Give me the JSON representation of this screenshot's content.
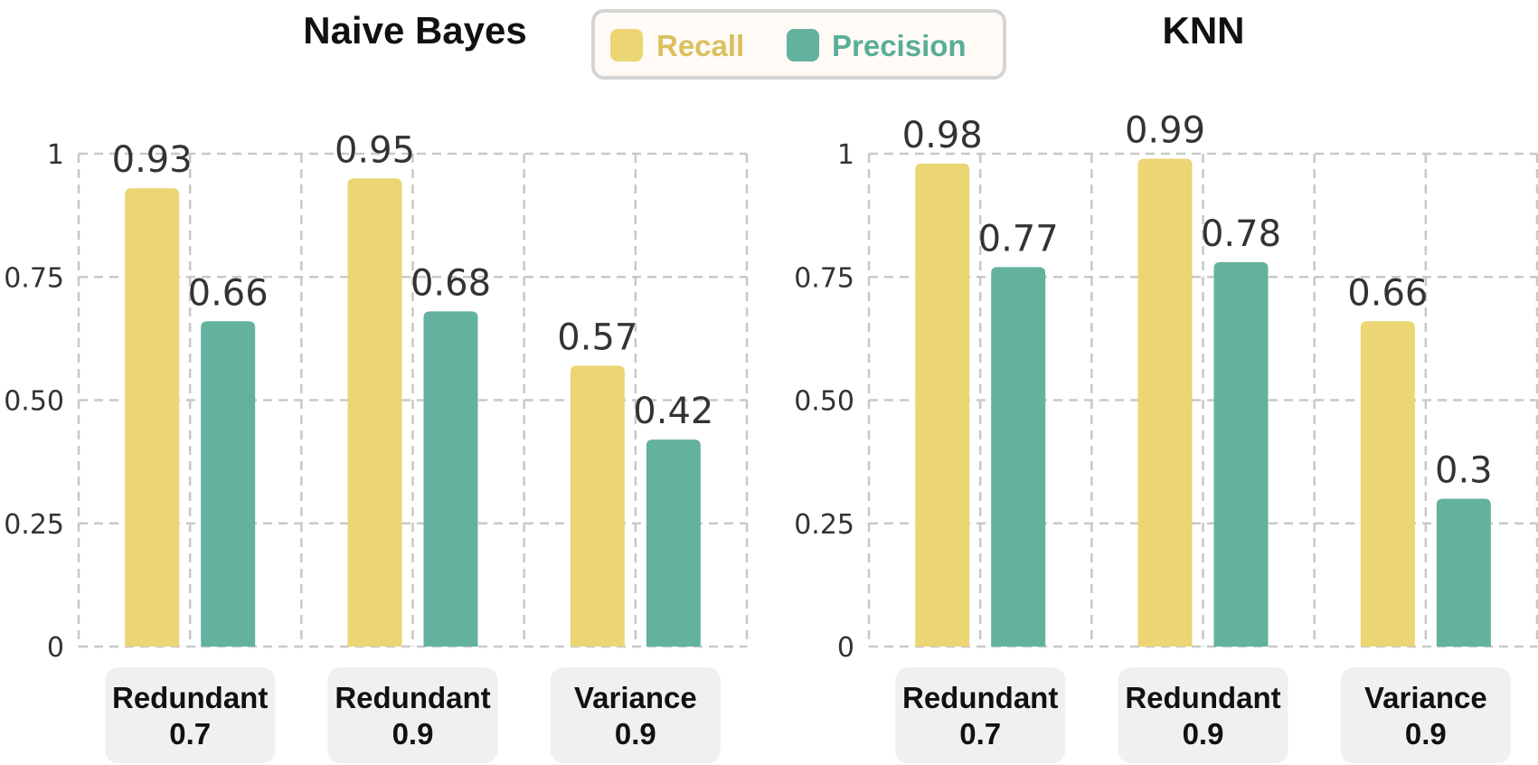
{
  "chart_data": [
    {
      "type": "bar",
      "title": "Naive Bayes",
      "categories": [
        [
          "Redundant",
          "0.7"
        ],
        [
          "Redundant",
          "0.9"
        ],
        [
          "Variance",
          "0.9"
        ]
      ],
      "series": [
        {
          "name": "Recall",
          "values": [
            0.93,
            0.95,
            0.57
          ],
          "color": "#ecd573"
        },
        {
          "name": "Precision",
          "values": [
            0.66,
            0.68,
            0.42
          ],
          "color": "#62b29e"
        }
      ],
      "yticks": [
        "0",
        "0.25",
        "0.50",
        "0.75",
        "1"
      ],
      "ylim": [
        0,
        1
      ],
      "grid": true
    },
    {
      "type": "bar",
      "title": "KNN",
      "categories": [
        [
          "Redundant",
          "0.7"
        ],
        [
          "Redundant",
          "0.9"
        ],
        [
          "Variance",
          "0.9"
        ]
      ],
      "series": [
        {
          "name": "Recall",
          "values": [
            0.98,
            0.99,
            0.66
          ],
          "color": "#ecd573"
        },
        {
          "name": "Precision",
          "values": [
            0.77,
            0.78,
            0.3
          ],
          "color": "#62b29e"
        }
      ],
      "yticks": [
        "0",
        "0.25",
        "0.50",
        "0.75",
        "1"
      ],
      "ylim": [
        0,
        1
      ],
      "grid": true
    }
  ],
  "legend": {
    "position": "top-center",
    "items": [
      {
        "label": "Recall",
        "color": "#ecd573",
        "text_color": "#d9c15e"
      },
      {
        "label": "Precision",
        "color": "#62b29e",
        "text_color": "#5aae98"
      }
    ]
  }
}
